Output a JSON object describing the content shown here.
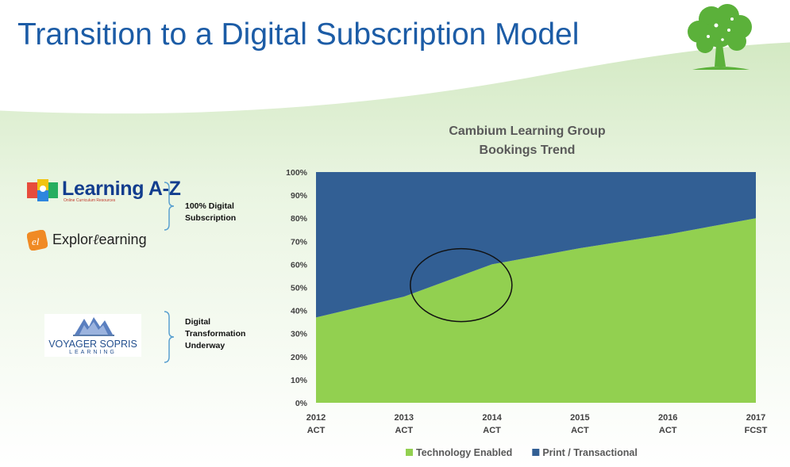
{
  "slide": {
    "title": "Transition to a Digital Subscription Model"
  },
  "logos": {
    "learning_az": {
      "name": "Learning A-Z",
      "tagline": "Online Curriculum Resources"
    },
    "explore_learning": {
      "name_part1": "Explor",
      "name_part2": "earning"
    },
    "voyager_sopris": {
      "name": "VOYAGER SOPRIS",
      "sub": "LEARNING"
    }
  },
  "groups": [
    {
      "line1": "100% Digital",
      "line2": "Subscription"
    },
    {
      "line1": "Digital",
      "line2": "Transformation",
      "line3": "Underway"
    }
  ],
  "colors": {
    "title": "#1c5ca6",
    "technology_enabled": "#92d050",
    "print_transactional": "#325f94",
    "background_wave": "#e8f3e0"
  },
  "chart_data": {
    "type": "area",
    "stacked": true,
    "percent": true,
    "title": "Cambium Learning Group",
    "subtitle": "Bookings Trend",
    "x": [
      "2012",
      "2013",
      "2014",
      "2015",
      "2016",
      "2017"
    ],
    "x_sublabels": [
      "ACT",
      "ACT",
      "ACT",
      "ACT",
      "ACT",
      "FCST"
    ],
    "ylim": [
      0,
      100
    ],
    "yticks": [
      0,
      10,
      20,
      30,
      40,
      50,
      60,
      70,
      80,
      90,
      100
    ],
    "ytick_labels": [
      "0%",
      "10%",
      "20%",
      "30%",
      "40%",
      "50%",
      "60%",
      "70%",
      "80%",
      "90%",
      "100%"
    ],
    "series": [
      {
        "name": "Technology Enabled",
        "values": [
          37,
          46,
          60,
          67,
          73,
          80
        ],
        "color": "#92d050"
      },
      {
        "name": "Print / Transactional",
        "values": [
          63,
          54,
          40,
          33,
          27,
          20
        ],
        "color": "#325f94"
      }
    ],
    "annotation": {
      "shape": "ellipse",
      "center_x": 2013.65,
      "center_y": 51
    },
    "legend": "bottom",
    "grid": false
  }
}
